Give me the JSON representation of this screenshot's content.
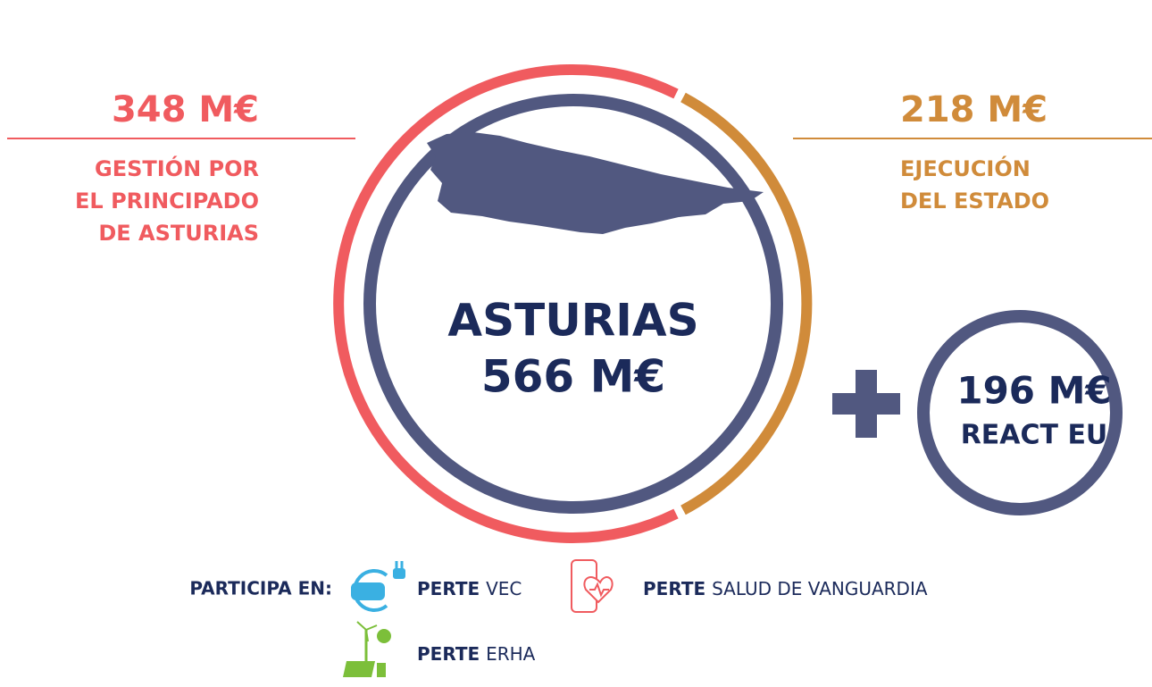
{
  "left": {
    "amount": "348 M€",
    "lines": [
      "GESTIÓN POR",
      "EL PRINCIPADO",
      "DE ASTURIAS"
    ]
  },
  "right": {
    "amount": "218 M€",
    "lines": [
      "EJECUCIÓN",
      "DEL ESTADO"
    ]
  },
  "center": {
    "name": "ASTURIAS",
    "amount": "566 M€"
  },
  "react": {
    "amount": "196 M€",
    "label": "REACT EU"
  },
  "participa": {
    "label": "PARTICIPA EN:",
    "items": [
      {
        "bold": "PERTE",
        "text": "VEC"
      },
      {
        "bold": "PERTE",
        "text": "SALUD DE VANGUARDIA"
      },
      {
        "bold": "PERTE",
        "text": "ERHA"
      }
    ]
  }
}
